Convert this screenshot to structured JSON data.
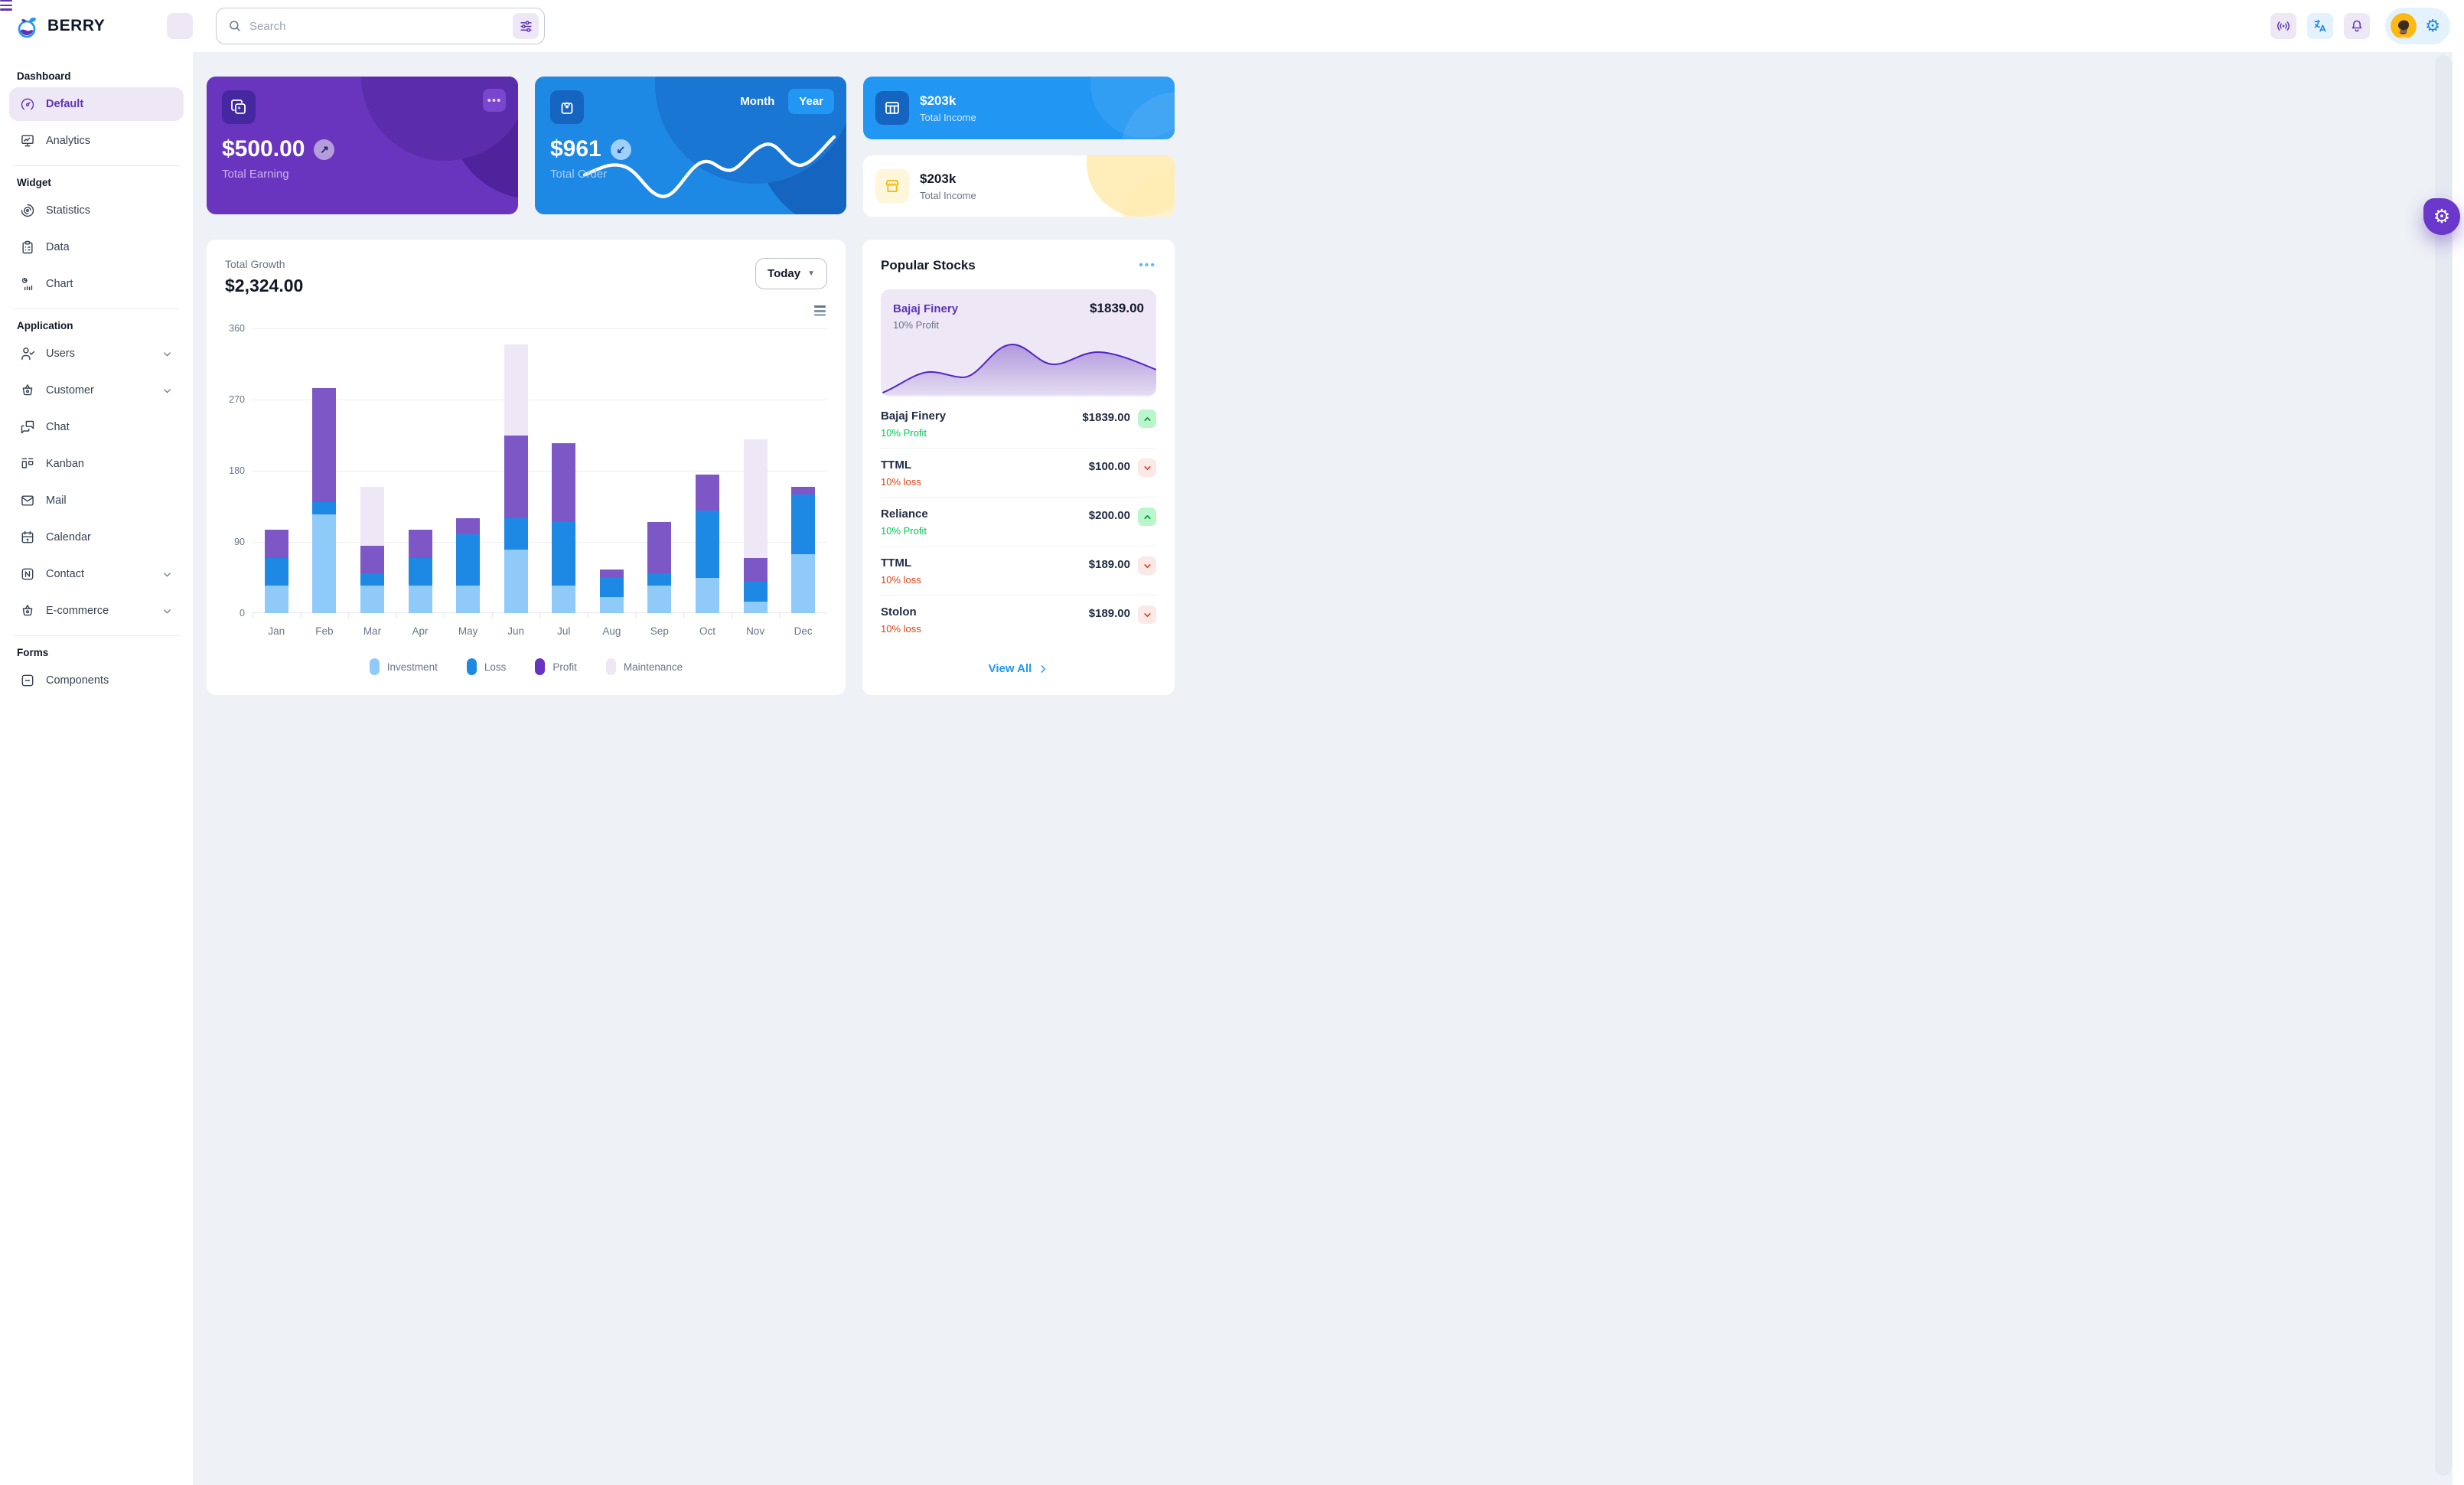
{
  "app": {
    "brand": "BERRY"
  },
  "header": {
    "search_placeholder": "Search"
  },
  "sidebar": {
    "sections": [
      {
        "title": "Dashboard",
        "divider_after": true,
        "items": [
          {
            "label": "Default",
            "icon": "dashboard-icon",
            "active": true
          },
          {
            "label": "Analytics",
            "icon": "analytics-icon"
          }
        ]
      },
      {
        "title": "Widget",
        "divider_after": true,
        "items": [
          {
            "label": "Statistics",
            "icon": "statistics-icon"
          },
          {
            "label": "Data",
            "icon": "data-icon"
          },
          {
            "label": "Chart",
            "icon": "chart-icon"
          }
        ]
      },
      {
        "title": "Application",
        "divider_after": true,
        "items": [
          {
            "label": "Users",
            "icon": "users-icon",
            "chevron": true
          },
          {
            "label": "Customer",
            "icon": "basket-icon",
            "chevron": true
          },
          {
            "label": "Chat",
            "icon": "chat-icon"
          },
          {
            "label": "Kanban",
            "icon": "kanban-icon"
          },
          {
            "label": "Mail",
            "icon": "mail-icon"
          },
          {
            "label": "Calendar",
            "icon": "calendar-icon"
          },
          {
            "label": "Contact",
            "icon": "contact-icon",
            "chevron": true
          },
          {
            "label": "E-commerce",
            "icon": "basket-icon",
            "chevron": true
          }
        ]
      },
      {
        "title": "Forms",
        "items": [
          {
            "label": "Components",
            "icon": "components-icon"
          }
        ]
      }
    ]
  },
  "cards": {
    "earning": {
      "value": "$500.00",
      "label": "Total Earning",
      "more_label": "•••"
    },
    "order": {
      "value": "$961",
      "label": "Total Order",
      "toggle": [
        "Month",
        "Year"
      ],
      "active_toggle": "Year"
    },
    "income_blue": {
      "value": "$203k",
      "label": "Total Income"
    },
    "income_light": {
      "value": "$203k",
      "label": "Total Income"
    }
  },
  "growth": {
    "label": "Total Growth",
    "value": "$2,324.00",
    "range": "Today"
  },
  "chart_data": {
    "type": "bar",
    "stacked": true,
    "title": "Total Growth",
    "categories": [
      "Jan",
      "Feb",
      "Mar",
      "Apr",
      "May",
      "Jun",
      "Jul",
      "Aug",
      "Sep",
      "Oct",
      "Nov",
      "Dec"
    ],
    "series": [
      {
        "name": "Investment",
        "color": "#90caf9",
        "values": [
          35,
          125,
          35,
          35,
          35,
          80,
          35,
          20,
          35,
          45,
          15,
          75
        ]
      },
      {
        "name": "Loss",
        "color": "#1e88e5",
        "values": [
          35,
          15,
          15,
          35,
          65,
          40,
          80,
          25,
          15,
          85,
          25,
          75
        ]
      },
      {
        "name": "Profit",
        "color": "#7e57c6",
        "legend_color": "#6733c0",
        "values": [
          35,
          145,
          35,
          35,
          20,
          105,
          100,
          10,
          65,
          45,
          30,
          10
        ]
      },
      {
        "name": "Maintenance",
        "color": "#ede7f6",
        "values": [
          0,
          0,
          75,
          0,
          0,
          115,
          0,
          0,
          0,
          0,
          150,
          0
        ]
      }
    ],
    "ylim": [
      0,
      360
    ],
    "yticks": [
      360,
      270,
      180,
      90,
      0
    ],
    "grid": true,
    "legend_position": "bottom"
  },
  "stocks": {
    "title": "Popular Stocks",
    "featured": {
      "name": "Bajaj Finery",
      "price": "$1839.00",
      "change": "10% Profit"
    },
    "items": [
      {
        "name": "Bajaj Finery",
        "price": "$1839.00",
        "change": "10% Profit",
        "direction": "up"
      },
      {
        "name": "TTML",
        "price": "$100.00",
        "change": "10% loss",
        "direction": "down"
      },
      {
        "name": "Reliance",
        "price": "$200.00",
        "change": "10% Profit",
        "direction": "up"
      },
      {
        "name": "TTML",
        "price": "$189.00",
        "change": "10% loss",
        "direction": "down"
      },
      {
        "name": "Stolon",
        "price": "$189.00",
        "change": "10% loss",
        "direction": "down"
      }
    ],
    "view_all": "View All"
  },
  "colors": {
    "page_bg": "#eef2f6",
    "primary": "#1e88e5",
    "secondary": "#5e35b1",
    "earning_card": "#6a35be",
    "order_card": "#1e88e5",
    "income_card": "#2196f3",
    "warning": "#ffc107",
    "success": "#00c853",
    "error": "#d84315"
  }
}
